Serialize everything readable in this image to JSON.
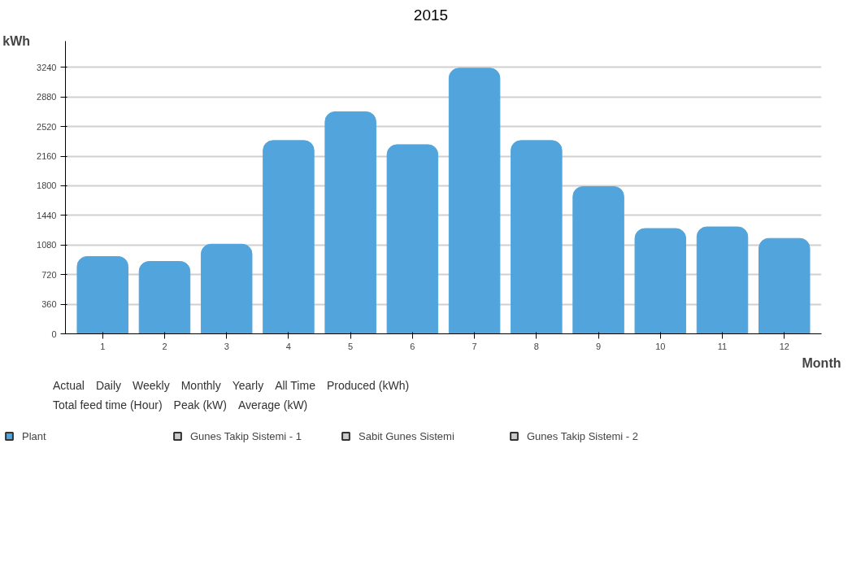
{
  "chart_data": {
    "type": "bar",
    "ylabel": "kWh",
    "xlabel": "Month",
    "categories": [
      "1",
      "2",
      "3",
      "4",
      "5",
      "6",
      "7",
      "8",
      "9",
      "10",
      "11",
      "12"
    ],
    "series": [
      {
        "name": "Plant",
        "color": "#52a5dc",
        "values": [
          940,
          880,
          1090,
          2350,
          2700,
          2300,
          3230,
          2350,
          1790,
          1280,
          1300,
          1160
        ]
      },
      {
        "name": "Gunes Takip Sistemi - 1",
        "color": "#cccccc",
        "values": [
          null,
          null,
          null,
          null,
          null,
          null,
          null,
          null,
          null,
          null,
          null,
          null
        ]
      },
      {
        "name": "Sabit Gunes Sistemi",
        "color": "#cccccc",
        "values": [
          null,
          null,
          null,
          null,
          null,
          null,
          null,
          null,
          null,
          null,
          null,
          null
        ]
      },
      {
        "name": "Gunes Takip Sistemi - 2",
        "color": "#cccccc",
        "values": [
          null,
          null,
          null,
          null,
          null,
          null,
          null,
          null,
          null,
          null,
          null,
          null
        ]
      }
    ],
    "ylim": [
      0,
      3560
    ],
    "yticks": [
      0,
      360,
      720,
      1080,
      1440,
      1800,
      2160,
      2520,
      2880,
      3240
    ],
    "grid": "y",
    "legend": "bottom",
    "annotations": [
      "2015",
      "Actual",
      "Daily",
      "Weekly",
      "Monthly",
      "Yearly",
      "All Time",
      "Produced (kWh)",
      "Total feed time (Hour)",
      "Peak (kW)",
      "Average (kW)"
    ]
  }
}
